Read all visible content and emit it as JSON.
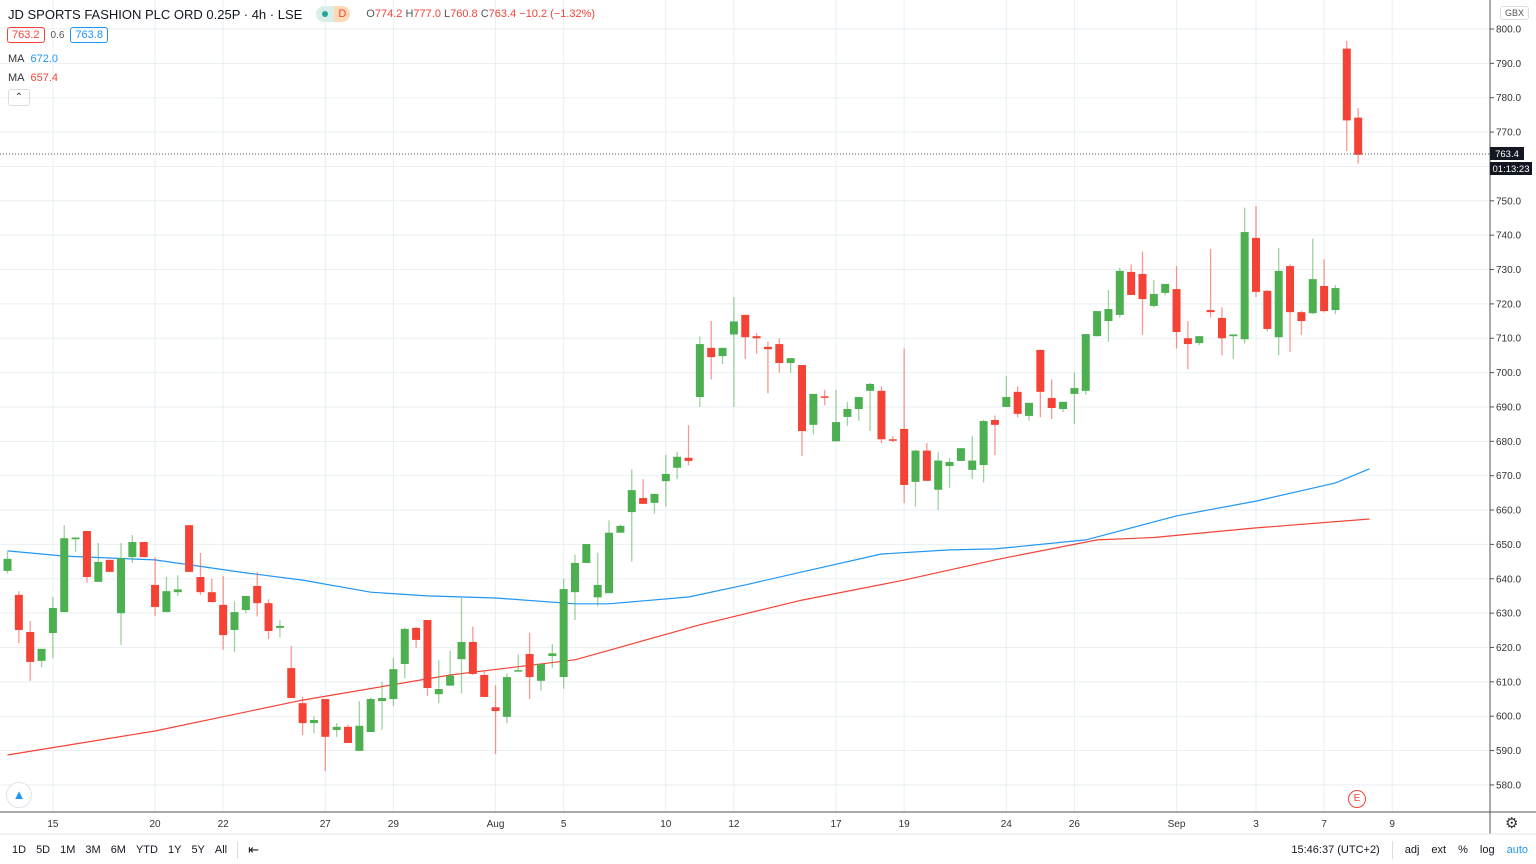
{
  "header": {
    "title": "JD SPORTS FASHION PLC ORD 0.25P · 4h · LSE",
    "status_badge": "D",
    "ohlc": {
      "o_label": "O",
      "o": "774.2",
      "h_label": "H",
      "h": "777.0",
      "l_label": "L",
      "l": "760.8",
      "c_label": "C",
      "c": "763.4",
      "change": "−10.2 (−1.32%)"
    },
    "bid": "763.2",
    "spread": "0.6",
    "ask": "763.8",
    "ma1": {
      "label": "MA",
      "value": "672.0",
      "color": "#2196f3"
    },
    "ma2": {
      "label": "MA",
      "value": "657.4",
      "color": "#f44336"
    },
    "collapse_icon": "chevron-up-icon"
  },
  "currency": "GBX",
  "last_price_label": "763.4",
  "countdown": "01:13:23",
  "earnings_marker": "E",
  "toolbar": {
    "ranges": [
      "1D",
      "5D",
      "1M",
      "3M",
      "6M",
      "YTD",
      "1Y",
      "5Y",
      "All"
    ],
    "goto_icon": "calendar-goto-icon",
    "clock": "15:46:37 (UTC+2)",
    "options": [
      "adj",
      "ext",
      "%",
      "log",
      "auto"
    ]
  },
  "colors": {
    "up": "#4caf50",
    "down": "#f44336",
    "ma1": "#2196f3",
    "ma2": "#f44336",
    "grid": "#e9eff3"
  },
  "chart_data": {
    "type": "candlestick",
    "title": "",
    "ylim": [
      575,
      805
    ],
    "y_ticks": [
      580,
      590,
      600,
      610,
      620,
      630,
      640,
      650,
      660,
      670,
      680,
      690,
      700,
      710,
      720,
      730,
      740,
      750,
      760,
      770,
      780,
      790,
      800
    ],
    "x_tick_labels": [
      {
        "label": "15",
        "index": 4
      },
      {
        "label": "20",
        "index": 13
      },
      {
        "label": "22",
        "index": 19
      },
      {
        "label": "27",
        "index": 28
      },
      {
        "label": "29",
        "index": 34
      },
      {
        "label": "Aug",
        "index": 43
      },
      {
        "label": "5",
        "index": 49
      },
      {
        "label": "10",
        "index": 58
      },
      {
        "label": "12",
        "index": 64
      },
      {
        "label": "17",
        "index": 73
      },
      {
        "label": "19",
        "index": 79
      },
      {
        "label": "24",
        "index": 88
      },
      {
        "label": "26",
        "index": 94
      },
      {
        "label": "Sep",
        "index": 103
      },
      {
        "label": "3",
        "index": 110
      },
      {
        "label": "7",
        "index": 116
      },
      {
        "label": "9",
        "index": 122
      }
    ],
    "grid": true,
    "candles": [
      [
        642.3,
        647.9,
        641.6,
        645.8
      ],
      [
        635.3,
        636.4,
        621.3,
        625.1
      ],
      [
        624.5,
        627.7,
        610.3,
        615.8
      ],
      [
        616.1,
        619.6,
        614.3,
        619.6
      ],
      [
        624.2,
        634.7,
        616.9,
        631.5
      ],
      [
        630.3,
        655.6,
        630.3,
        651.8
      ],
      [
        651.5,
        652.0,
        647.8,
        652.0
      ],
      [
        653.9,
        653.9,
        638.8,
        640.5
      ],
      [
        639.1,
        650.4,
        639.1,
        644.9
      ],
      [
        645.5,
        645.5,
        642.0,
        642.0
      ],
      [
        630.0,
        650.4,
        620.7,
        646.0
      ],
      [
        646.3,
        652.7,
        644.6,
        650.7
      ],
      [
        650.7,
        650.7,
        646.3,
        646.3
      ],
      [
        638.2,
        646.3,
        629.2,
        631.8
      ],
      [
        630.3,
        640.5,
        630.3,
        636.4
      ],
      [
        636.1,
        641.0,
        635.0,
        636.9
      ],
      [
        655.6,
        655.6,
        642.0,
        642.0
      ],
      [
        640.5,
        647.5,
        635.3,
        636.1
      ],
      [
        636.1,
        640.0,
        633.2,
        633.2
      ],
      [
        632.4,
        640.8,
        619.3,
        623.6
      ],
      [
        625.1,
        633.4,
        618.6,
        630.3
      ],
      [
        630.9,
        635.0,
        630.0,
        635.0
      ],
      [
        637.9,
        642.0,
        629.0,
        632.9
      ],
      [
        632.9,
        634.0,
        622.5,
        624.8
      ],
      [
        625.7,
        628.0,
        623.0,
        626.3
      ],
      [
        614.0,
        620.4,
        605.3,
        605.3
      ],
      [
        603.8,
        605.6,
        594.5,
        598.0
      ],
      [
        598.0,
        600.0,
        595.0,
        598.9
      ],
      [
        605.0,
        605.0,
        584.0,
        594.0
      ],
      [
        596.0,
        598.0,
        594.0,
        596.9
      ],
      [
        596.9,
        597.5,
        592.2,
        592.2
      ],
      [
        589.9,
        604.4,
        589.9,
        597.2
      ],
      [
        595.4,
        605.5,
        595.4,
        605.0
      ],
      [
        604.4,
        610.0,
        596.0,
        605.3
      ],
      [
        605.0,
        617.0,
        603.0,
        613.7
      ],
      [
        615.2,
        625.8,
        611.0,
        625.4
      ],
      [
        625.7,
        626.0,
        619.9,
        622.2
      ],
      [
        628.0,
        628.0,
        605.9,
        608.2
      ],
      [
        606.4,
        616.3,
        603.8,
        607.9
      ],
      [
        608.9,
        619.0,
        608.9,
        611.8
      ],
      [
        616.6,
        634.4,
        606.7,
        621.6
      ],
      [
        621.6,
        626.0,
        612.0,
        612.3
      ],
      [
        612.0,
        613.0,
        605.6,
        605.6
      ],
      [
        602.6,
        609.0,
        589.0,
        601.5
      ],
      [
        599.8,
        612.5,
        598.0,
        611.4
      ],
      [
        613.1,
        618.0,
        613.0,
        613.4
      ],
      [
        618.1,
        624.3,
        605.0,
        611.4
      ],
      [
        610.3,
        615.2,
        607.5,
        615.2
      ],
      [
        617.5,
        621.0,
        614.0,
        618.3
      ],
      [
        611.4,
        640.0,
        608.0,
        637.0
      ],
      [
        636.1,
        647.0,
        628.0,
        644.6
      ],
      [
        644.6,
        650.1,
        644.6,
        650.1
      ],
      [
        634.6,
        647.6,
        632.0,
        638.2
      ],
      [
        635.8,
        657.0,
        635.8,
        653.4
      ],
      [
        653.4,
        655.8,
        653.4,
        655.4
      ],
      [
        659.4,
        671.8,
        645.0,
        665.8
      ],
      [
        663.5,
        669.0,
        661.8,
        661.8
      ],
      [
        662.1,
        664.7,
        659.0,
        664.7
      ],
      [
        668.4,
        676.0,
        661.0,
        670.5
      ],
      [
        672.3,
        677.0,
        669.0,
        675.5
      ],
      [
        675.2,
        684.7,
        673.0,
        674.3
      ],
      [
        692.9,
        710.5,
        690.0,
        708.3
      ],
      [
        707.2,
        715.0,
        698.0,
        704.5
      ],
      [
        704.8,
        707.2,
        702.5,
        707.2
      ],
      [
        711.1,
        722.0,
        690.0,
        714.9
      ],
      [
        716.8,
        716.8,
        704.0,
        710.3
      ],
      [
        710.6,
        711.5,
        705.5,
        710.0
      ],
      [
        707.5,
        709.0,
        694.0,
        706.8
      ],
      [
        708.3,
        710.0,
        700.0,
        702.8
      ],
      [
        702.8,
        704.2,
        700.0,
        704.2
      ],
      [
        702.2,
        702.2,
        675.7,
        683.0
      ],
      [
        684.8,
        693.8,
        682.0,
        693.8
      ],
      [
        693.1,
        695.0,
        690.5,
        692.9
      ],
      [
        680.0,
        695.0,
        680.0,
        685.6
      ],
      [
        687.1,
        691.5,
        684.5,
        689.4
      ],
      [
        689.4,
        692.9,
        686.0,
        692.9
      ],
      [
        694.7,
        697.0,
        683.0,
        696.7
      ],
      [
        694.7,
        696.0,
        679.5,
        680.6
      ],
      [
        680.6,
        681.5,
        679.8,
        680.3
      ],
      [
        683.6,
        707.0,
        662.0,
        667.3
      ],
      [
        668.2,
        677.5,
        661.0,
        677.3
      ],
      [
        677.3,
        679.5,
        668.5,
        668.5
      ],
      [
        665.9,
        676.8,
        660.0,
        674.4
      ],
      [
        672.8,
        675.2,
        666.5,
        674.0
      ],
      [
        674.3,
        678.0,
        674.3,
        678.0
      ],
      [
        671.7,
        681.5,
        669.0,
        674.4
      ],
      [
        673.1,
        686.3,
        668.0,
        685.9
      ],
      [
        686.2,
        687.5,
        676.0,
        684.8
      ],
      [
        690.0,
        699.0,
        690.0,
        692.9
      ],
      [
        694.4,
        696.0,
        687.0,
        688.0
      ],
      [
        687.4,
        691.2,
        686.0,
        691.2
      ],
      [
        706.6,
        706.6,
        687.0,
        694.4
      ],
      [
        692.6,
        698.0,
        686.5,
        689.7
      ],
      [
        689.4,
        691.5,
        688.5,
        691.5
      ],
      [
        693.8,
        700.0,
        685.0,
        695.5
      ],
      [
        694.7,
        711.2,
        693.5,
        711.2
      ],
      [
        710.6,
        717.9,
        710.6,
        717.9
      ],
      [
        715.0,
        724.0,
        709.0,
        718.5
      ],
      [
        716.8,
        730.5,
        716.0,
        729.6
      ],
      [
        729.3,
        731.5,
        722.6,
        722.6
      ],
      [
        728.7,
        735.2,
        711.0,
        721.4
      ],
      [
        719.4,
        727.0,
        719.0,
        722.9
      ],
      [
        723.2,
        725.8,
        722.5,
        725.8
      ],
      [
        724.3,
        731.0,
        707.0,
        711.8
      ],
      [
        710.0,
        715.0,
        701.0,
        708.3
      ],
      [
        708.6,
        710.6,
        708.0,
        710.6
      ],
      [
        718.2,
        736.0,
        716.0,
        717.6
      ],
      [
        715.9,
        719.0,
        705.0,
        710.0
      ],
      [
        710.6,
        711.1,
        704.0,
        711.1
      ],
      [
        709.7,
        748.0,
        708.5,
        740.9
      ],
      [
        739.2,
        748.5,
        722.0,
        723.5
      ],
      [
        723.8,
        724.0,
        712.0,
        712.7
      ],
      [
        710.3,
        736.3,
        705.0,
        729.6
      ],
      [
        731.0,
        731.5,
        706.0,
        717.6
      ],
      [
        717.6,
        718.0,
        711.0,
        715.0
      ],
      [
        717.3,
        739.0,
        717.0,
        727.2
      ],
      [
        725.2,
        733.0,
        717.5,
        717.9
      ],
      [
        718.2,
        725.5,
        717.0,
        724.6
      ],
      [
        794.3,
        796.5,
        764.5,
        773.4
      ],
      [
        774.2,
        777.0,
        760.8,
        763.4
      ]
    ],
    "candle_fields": [
      "open",
      "high",
      "low",
      "close"
    ],
    "moving_averages": [
      {
        "name": "MA",
        "color": "#2196f3",
        "points": [
          [
            0,
            648.1
          ],
          [
            5,
            646.6
          ],
          [
            13,
            645.5
          ],
          [
            21,
            641.7
          ],
          [
            26,
            639.6
          ],
          [
            32,
            636.1
          ],
          [
            37,
            635.0
          ],
          [
            43,
            634.4
          ],
          [
            50,
            632.7
          ],
          [
            53,
            632.7
          ],
          [
            60,
            634.7
          ],
          [
            65,
            638.2
          ],
          [
            70,
            642.0
          ],
          [
            77,
            647.2
          ],
          [
            83,
            648.4
          ],
          [
            87,
            648.7
          ],
          [
            95,
            651.3
          ],
          [
            103,
            658.3
          ],
          [
            110,
            662.6
          ],
          [
            117,
            667.9
          ],
          [
            120,
            672.0
          ]
        ]
      },
      {
        "name": "MA",
        "color": "#f44336",
        "points": [
          [
            0,
            588.7
          ],
          [
            13,
            595.7
          ],
          [
            26,
            604.7
          ],
          [
            39,
            612.0
          ],
          [
            50,
            616.4
          ],
          [
            61,
            626.6
          ],
          [
            70,
            633.8
          ],
          [
            79,
            639.6
          ],
          [
            87,
            645.5
          ],
          [
            96,
            651.3
          ],
          [
            101,
            652.0
          ],
          [
            110,
            654.8
          ],
          [
            120,
            657.4
          ]
        ]
      }
    ]
  }
}
